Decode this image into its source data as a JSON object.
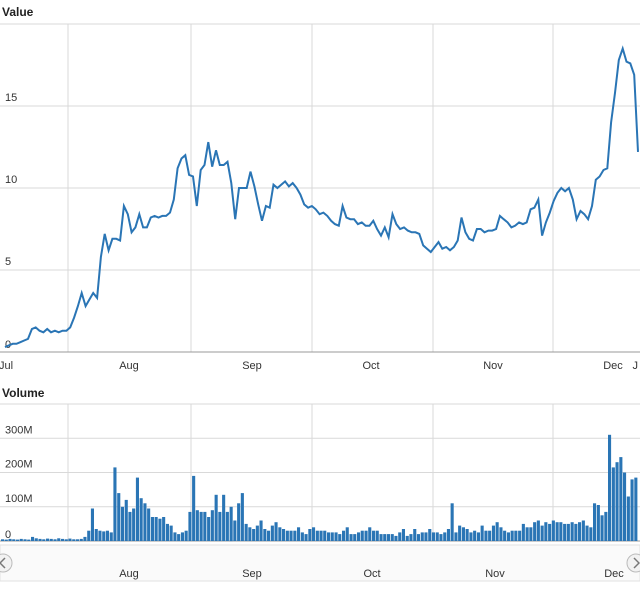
{
  "chart_data": [
    {
      "type": "line",
      "title": "Value",
      "xlabel": "",
      "ylabel": "",
      "x_ticks": [
        "Jul",
        "Aug",
        "Sep",
        "Oct",
        "Nov",
        "Dec",
        "J"
      ],
      "y_ticks": [
        "0",
        "5",
        "10",
        "15"
      ],
      "ylim": [
        0,
        20
      ],
      "grid": true,
      "series": [
        {
          "values": [
            0.3,
            0.4,
            0.5,
            0.5,
            0.6,
            0.7,
            0.8,
            1.4,
            1.5,
            1.3,
            1.2,
            1.4,
            1.2,
            1.3,
            1.2,
            1.3,
            1.3,
            1.5,
            2.1,
            2.8,
            3.6,
            2.8,
            3.2,
            3.6,
            3.3,
            5.8,
            7.2,
            6.2,
            6.9,
            6.9,
            6.8,
            8.9,
            8.4,
            7.3,
            7.6,
            8.4,
            7.6,
            7.6,
            8.2,
            8.3,
            8.2,
            8.3,
            8.3,
            8.5,
            9.3,
            11.2,
            11.8,
            12.0,
            10.8,
            10.7,
            8.9,
            11.1,
            11.4,
            12.8,
            11.3,
            12.3,
            11.4,
            11.4,
            11.6,
            10.3,
            8.1,
            10.0,
            10.0,
            10.0,
            11.0,
            10.1,
            9.0,
            8.0,
            8.9,
            8.8,
            10.2,
            10.0,
            10.2,
            10.4,
            10.1,
            10.3,
            10.0,
            9.6,
            9.0,
            8.8,
            8.9,
            8.7,
            8.4,
            8.5,
            8.3,
            8.0,
            7.8,
            7.7,
            8.9,
            8.2,
            8.1,
            8.1,
            7.8,
            7.9,
            7.7,
            7.7,
            8.0,
            7.5,
            7.1,
            7.6,
            7.0,
            8.4,
            7.8,
            7.5,
            7.6,
            7.4,
            7.3,
            7.3,
            7.2,
            6.5,
            6.3,
            6.1,
            6.4,
            6.7,
            6.3,
            6.4,
            6.2,
            6.4,
            6.8,
            8.2,
            7.3,
            6.9,
            6.8,
            7.5,
            7.5,
            7.3,
            7.4,
            7.4,
            7.5,
            8.3,
            8.1,
            7.9,
            7.6,
            7.7,
            7.9,
            7.8,
            7.9,
            8.7,
            8.8,
            9.3,
            7.1,
            7.9,
            8.5,
            9.2,
            9.7,
            10.0,
            9.8,
            10.0,
            9.3,
            8.1,
            8.6,
            8.4,
            8.1,
            8.9,
            10.5,
            10.7,
            11.1,
            11.2,
            14.0,
            15.8,
            17.8,
            18.5,
            17.7,
            17.6,
            16.9,
            12.2
          ]
        }
      ]
    },
    {
      "type": "bar",
      "title": "Volume",
      "xlabel": "",
      "ylabel": "",
      "x_ticks": [
        "Aug",
        "Sep",
        "Oct",
        "Nov",
        "Dec"
      ],
      "y_ticks": [
        "0",
        "100M",
        "200M",
        "300M"
      ],
      "ylim": [
        0,
        400
      ],
      "grid": true,
      "series": [
        {
          "values": [
            5,
            4,
            6,
            5,
            4,
            6,
            5,
            4,
            12,
            8,
            6,
            5,
            7,
            6,
            5,
            8,
            6,
            5,
            7,
            5,
            5,
            6,
            12,
            30,
            95,
            35,
            30,
            28,
            30,
            25,
            215,
            140,
            100,
            120,
            85,
            95,
            185,
            125,
            110,
            95,
            70,
            70,
            65,
            70,
            50,
            45,
            25,
            20,
            25,
            30,
            85,
            190,
            90,
            85,
            85,
            70,
            90,
            135,
            85,
            135,
            85,
            100,
            60,
            110,
            140,
            50,
            40,
            35,
            45,
            60,
            35,
            30,
            45,
            55,
            40,
            35,
            30,
            30,
            30,
            40,
            25,
            20,
            35,
            40,
            30,
            30,
            30,
            25,
            25,
            25,
            20,
            30,
            40,
            20,
            20,
            25,
            30,
            30,
            40,
            30,
            30,
            20,
            20,
            20,
            20,
            15,
            25,
            35,
            15,
            20,
            35,
            20,
            25,
            25,
            35,
            25,
            25,
            20,
            25,
            35,
            110,
            25,
            45,
            40,
            35,
            25,
            30,
            25,
            45,
            30,
            30,
            45,
            55,
            40,
            30,
            25,
            30,
            30,
            30,
            50,
            40,
            40,
            55,
            60,
            45,
            55,
            50,
            60,
            55,
            55,
            50,
            50,
            55,
            50,
            55,
            60,
            45,
            40,
            110,
            105,
            75,
            85,
            310,
            215,
            230,
            245,
            200,
            130,
            180,
            185
          ]
        }
      ]
    }
  ]
}
